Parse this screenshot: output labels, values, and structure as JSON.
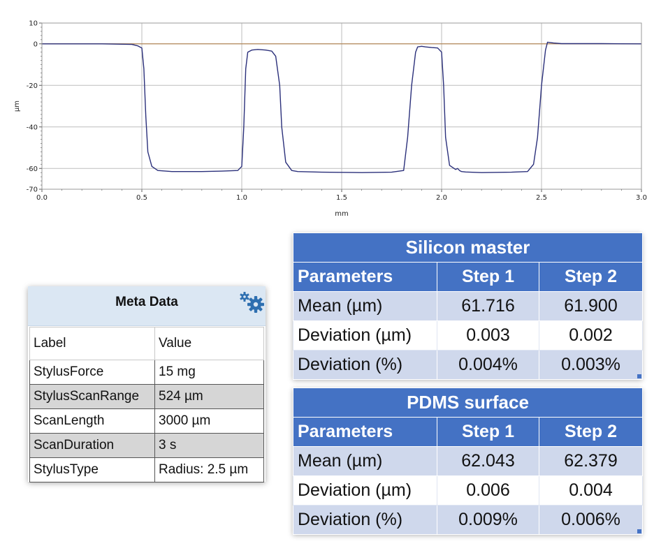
{
  "chart_data": {
    "type": "line",
    "xlabel": "mm",
    "ylabel": "µm",
    "xlim": [
      0.0,
      3.0
    ],
    "ylim": [
      -70,
      10
    ],
    "x_ticks": [
      "0.0",
      "0.5",
      "1.0",
      "1.5",
      "2.0",
      "2.5",
      "3.0"
    ],
    "y_ticks": [
      "10",
      "0",
      "-20",
      "-40",
      "-60",
      "-70"
    ],
    "grid": true,
    "reference_line": 0,
    "colors": {
      "line": "#2a2f7a",
      "reference": "#b48a5a",
      "grid": "#bdbdbd"
    },
    "series": [
      {
        "x": [
          0.0,
          0.3,
          0.45,
          0.48,
          0.5,
          0.51,
          0.52,
          0.53,
          0.55,
          0.58,
          0.65,
          0.8,
          0.9,
          0.98,
          1.0,
          1.01,
          1.02,
          1.03,
          1.05,
          1.08,
          1.12,
          1.15,
          1.17,
          1.19,
          1.2,
          1.22,
          1.25,
          1.28,
          1.4,
          1.6,
          1.75,
          1.81,
          1.83,
          1.85,
          1.87,
          1.88,
          1.9,
          1.92,
          1.95,
          1.98,
          2.0,
          2.01,
          2.02,
          2.04,
          2.07,
          2.08,
          2.09,
          2.1,
          2.12,
          2.2,
          2.35,
          2.43,
          2.46,
          2.48,
          2.5,
          2.52,
          2.53,
          2.56,
          2.6,
          2.8,
          3.0
        ],
        "y": [
          0,
          0,
          -0.3,
          -1,
          -2,
          -12,
          -35,
          -52,
          -59,
          -61,
          -61.5,
          -61.5,
          -61.3,
          -61,
          -59,
          -40,
          -12,
          -4,
          -3,
          -2.7,
          -3,
          -3.5,
          -6,
          -20,
          -40,
          -57,
          -61,
          -61.5,
          -61.8,
          -62,
          -61.8,
          -61,
          -45,
          -20,
          -4,
          -1.5,
          -1.2,
          -1.5,
          -1.8,
          -2,
          -4,
          -20,
          -45,
          -58.5,
          -60.5,
          -60,
          -61,
          -61.5,
          -61.7,
          -62,
          -61.8,
          -61.5,
          -58,
          -45,
          -20,
          -3,
          0.8,
          0.4,
          0.1,
          0.1,
          0
        ]
      }
    ]
  },
  "meta": {
    "title": "Meta Data",
    "gear_icon": "gear-icon",
    "columns": [
      "Label",
      "Value"
    ],
    "rows": [
      [
        "StylusForce",
        "15 mg"
      ],
      [
        "StylusScanRange",
        "524 µm"
      ],
      [
        "ScanLength",
        "3000 µm"
      ],
      [
        "ScanDuration",
        "3 s"
      ],
      [
        "StylusType",
        "Radius: 2.5 µm"
      ]
    ]
  },
  "silicon": {
    "title": "Silicon master",
    "header": [
      "Parameters",
      "Step 1",
      "Step 2"
    ],
    "rows": [
      [
        "Mean (µm)",
        "61.716",
        "61.900"
      ],
      [
        "Deviation (µm)",
        "0.003",
        "0.002"
      ],
      [
        "Deviation (%)",
        "0.004%",
        "0.003%"
      ]
    ]
  },
  "pdms": {
    "title": "PDMS surface",
    "header": [
      "Parameters",
      "Step 1",
      "Step 2"
    ],
    "rows": [
      [
        "Mean (µm)",
        "62.043",
        "62.379"
      ],
      [
        "Deviation (µm)",
        "0.006",
        "0.004"
      ],
      [
        "Deviation (%)",
        "0.009%",
        "0.006%"
      ]
    ]
  }
}
